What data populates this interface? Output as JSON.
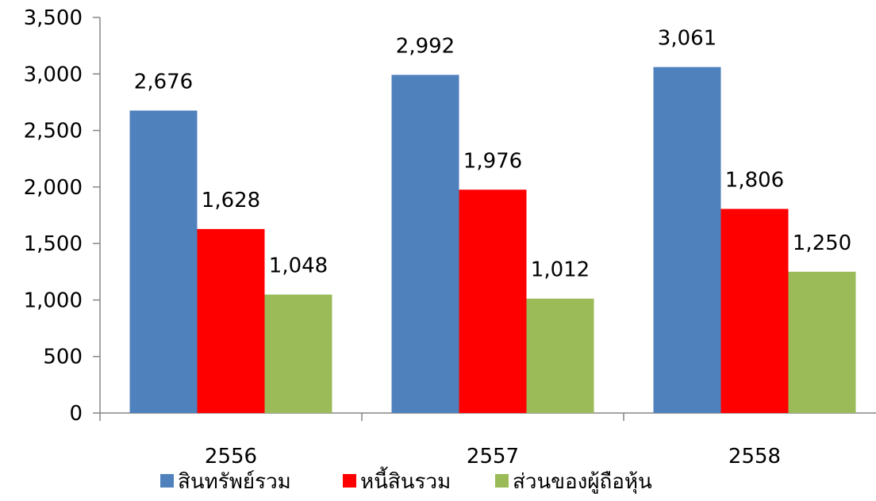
{
  "chart_data": {
    "type": "bar",
    "categories": [
      "2556",
      "2557",
      "2558"
    ],
    "series": [
      {
        "name": "สินทรัพย์รวม",
        "values": [
          2676,
          2992,
          3061
        ],
        "labels": [
          "2,676",
          "2,992",
          "3,061"
        ],
        "color": "#4F81BD"
      },
      {
        "name": "หนี้สินรวม",
        "values": [
          1628,
          1976,
          1806
        ],
        "labels": [
          "1,628",
          "1,976",
          "1,806"
        ],
        "color": "#FF0000"
      },
      {
        "name": "ส่วนของผู้ถือหุ้น",
        "values": [
          1048,
          1012,
          1250
        ],
        "labels": [
          "1,048",
          "1,012",
          "1,250"
        ],
        "color": "#9BBB59"
      }
    ],
    "yticks": [
      "0",
      "500",
      "1,000",
      "1,500",
      "2,000",
      "2,500",
      "3,000",
      "3,500"
    ],
    "ylim": [
      0,
      3500
    ],
    "grid": false,
    "legend_position": "bottom"
  }
}
